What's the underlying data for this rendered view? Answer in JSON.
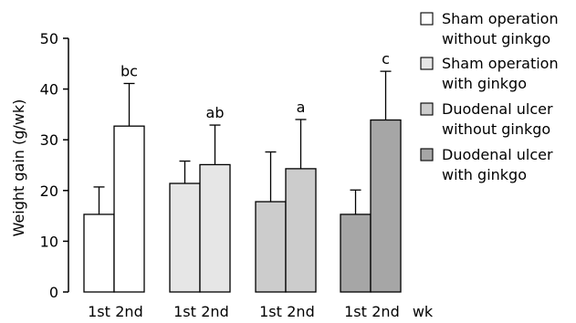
{
  "chart_data": {
    "type": "bar",
    "ylabel": "Weight gain (g/wk)",
    "xlabel": "",
    "x_unit_label": "wk",
    "ylim": [
      0,
      50
    ],
    "yticks": [
      0,
      10,
      20,
      30,
      40,
      50
    ],
    "grid": false,
    "legend_placement": "right",
    "series": [
      {
        "name": "Sham operation without ginkgo",
        "color": "#ffffff",
        "categories": [
          "1st",
          "2nd"
        ],
        "values": [
          15.3,
          32.7
        ],
        "errors": [
          5.4,
          8.4
        ],
        "sig_label": "bc"
      },
      {
        "name": "Sham operation with ginkgo",
        "color": "#e6e6e6",
        "categories": [
          "1st",
          "2nd"
        ],
        "values": [
          21.4,
          25.1
        ],
        "errors": [
          4.4,
          7.8
        ],
        "sig_label": "ab"
      },
      {
        "name": "Duodenal ulcer without ginkgo",
        "color": "#cccccc",
        "categories": [
          "1st",
          "2nd"
        ],
        "values": [
          17.8,
          24.3
        ],
        "errors": [
          9.8,
          9.7
        ],
        "sig_label": "a"
      },
      {
        "name": "Duodenal ulcer with ginkgo",
        "color": "#a6a6a6",
        "categories": [
          "1st",
          "2nd"
        ],
        "values": [
          15.3,
          33.9
        ],
        "errors": [
          4.8,
          9.6
        ],
        "sig_label": "c"
      }
    ],
    "legend_lines": [
      [
        "Sham operation",
        "without ginkgo"
      ],
      [
        "Sham operation",
        "with ginkgo"
      ],
      [
        "Duodenal ulcer",
        "without ginkgo"
      ],
      [
        "Duodenal ulcer",
        "with ginkgo"
      ]
    ]
  }
}
